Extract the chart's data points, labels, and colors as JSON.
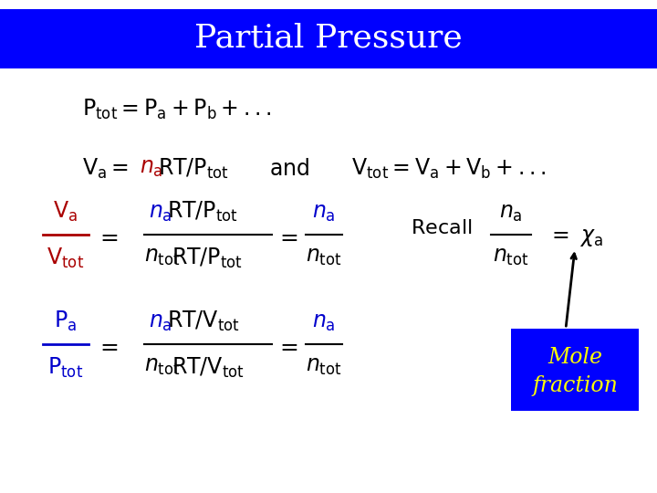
{
  "title": "Partial Pressure",
  "title_bg": "#0000FF",
  "title_color": "#FFFFFF",
  "bg_color": "#FFFFFF",
  "text_color": "#000000",
  "blue_color": "#0000CC",
  "red_color": "#AA0000",
  "mole_box_color": "#0000FF",
  "mole_text_color": "#FFFF00",
  "figsize": [
    7.2,
    5.4
  ],
  "dpi": 100
}
